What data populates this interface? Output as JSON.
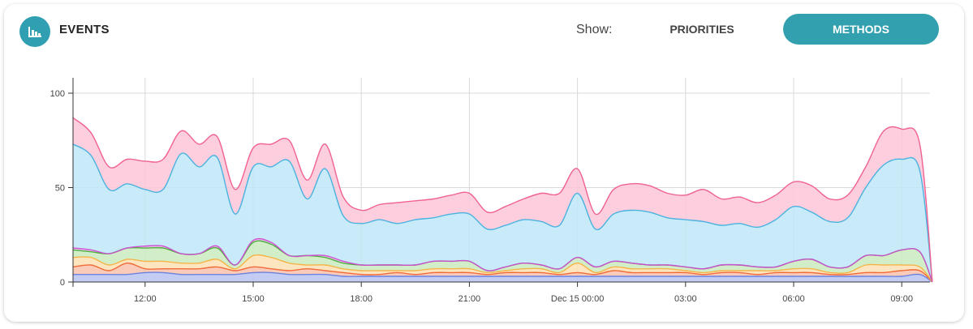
{
  "header": {
    "title": "EVENTS",
    "show_label": "Show:",
    "buttons": [
      {
        "label": "PRIORITIES",
        "active": false
      },
      {
        "label": "METHODS",
        "active": true
      }
    ],
    "icon": "bar-chart-icon",
    "accent_color": "#33a0b0"
  },
  "chart_data": {
    "type": "area",
    "stacked": true,
    "smooth": true,
    "grid": true,
    "ylim": [
      0,
      110
    ],
    "y_ticks": [
      0,
      50,
      100
    ],
    "x_ticks": [
      {
        "hour": 12,
        "label": "12:00"
      },
      {
        "hour": 15,
        "label": "15:00"
      },
      {
        "hour": 18,
        "label": "18:00"
      },
      {
        "hour": 21,
        "label": "21:00"
      },
      {
        "hour": 24,
        "label": "Dec 15 00:00"
      },
      {
        "hour": 27,
        "label": "03:00"
      },
      {
        "hour": 30,
        "label": "06:00"
      },
      {
        "hour": 33,
        "label": "09:00"
      }
    ],
    "x_hours": [
      10.0,
      10.5,
      11.0,
      11.5,
      12.0,
      12.5,
      13.0,
      13.5,
      14.0,
      14.5,
      15.0,
      15.5,
      16.0,
      16.5,
      17.0,
      17.5,
      18.0,
      18.5,
      19.0,
      19.5,
      20.0,
      20.5,
      21.0,
      21.5,
      22.0,
      22.5,
      23.0,
      23.5,
      24.0,
      24.5,
      25.0,
      25.5,
      26.0,
      26.5,
      27.0,
      27.5,
      28.0,
      28.5,
      29.0,
      29.5,
      30.0,
      30.5,
      31.0,
      31.5,
      32.0,
      32.5,
      33.0,
      33.5,
      33.85
    ],
    "series": [
      {
        "color": "#6b82e0",
        "fill": "#b8c4f2",
        "values": [
          4,
          4,
          4,
          4,
          5,
          5,
          4,
          4,
          4,
          4,
          5,
          5,
          4,
          4,
          4,
          3,
          3,
          3,
          3,
          3,
          3,
          3,
          3,
          3,
          3,
          3,
          3,
          3,
          3,
          3,
          3,
          3,
          3,
          3,
          3,
          3,
          3,
          3,
          3,
          3,
          3,
          3,
          3,
          3,
          3,
          3,
          3,
          4,
          0
        ]
      },
      {
        "color": "#f06a3a",
        "fill": "#f9c2ac",
        "values": [
          4,
          5,
          2,
          6,
          2,
          2,
          3,
          3,
          4,
          2,
          3,
          2,
          2,
          3,
          2,
          2,
          1,
          1,
          2,
          1,
          2,
          2,
          2,
          1,
          2,
          2,
          2,
          1,
          2,
          1,
          3,
          2,
          2,
          2,
          2,
          1,
          2,
          2,
          1,
          2,
          2,
          2,
          1,
          1,
          2,
          2,
          3,
          2,
          0
        ]
      },
      {
        "color": "#f5b44a",
        "fill": "#fde2b4",
        "values": [
          5,
          4,
          3,
          2,
          4,
          4,
          3,
          3,
          4,
          1,
          6,
          6,
          4,
          2,
          3,
          2,
          2,
          2,
          1,
          2,
          2,
          2,
          2,
          1,
          1,
          2,
          2,
          1,
          5,
          1,
          2,
          2,
          2,
          2,
          1,
          1,
          1,
          1,
          2,
          1,
          2,
          2,
          1,
          1,
          4,
          4,
          3,
          2,
          0
        ]
      },
      {
        "color": "#4caf3e",
        "fill": "#c9ebc0",
        "values": [
          4,
          3,
          6,
          6,
          7,
          7,
          5,
          5,
          6,
          2,
          7,
          7,
          4,
          5,
          4,
          3,
          3,
          3,
          3,
          3,
          4,
          4,
          4,
          1,
          2,
          3,
          2,
          2,
          3,
          3,
          3,
          3,
          2,
          2,
          2,
          2,
          3,
          3,
          2,
          2,
          4,
          5,
          3,
          3,
          5,
          5,
          8,
          8,
          0
        ]
      },
      {
        "color": "#cc4fd0",
        "fill": "#ecc0ee",
        "values": [
          1,
          1,
          0,
          0,
          1,
          1,
          0,
          0,
          1,
          0,
          1,
          1,
          0,
          0,
          1,
          1,
          0,
          0,
          0,
          0,
          0,
          0,
          0,
          0,
          0,
          0,
          0,
          0,
          0,
          0,
          0,
          0,
          0,
          0,
          0,
          0,
          0,
          0,
          0,
          0,
          0,
          0,
          0,
          0,
          0,
          0,
          0,
          0,
          0
        ]
      },
      {
        "color": "#4ab3e0",
        "fill": "#bfe6f7",
        "values": [
          55,
          50,
          34,
          34,
          30,
          30,
          53,
          46,
          47,
          27,
          39,
          40,
          50,
          30,
          46,
          24,
          22,
          24,
          22,
          24,
          23,
          25,
          25,
          22,
          22,
          23,
          23,
          23,
          34,
          20,
          25,
          28,
          28,
          25,
          25,
          25,
          21,
          22,
          21,
          25,
          29,
          25,
          24,
          26,
          36,
          48,
          48,
          43,
          0
        ]
      },
      {
        "color": "#f06292",
        "fill": "#fbc5d8",
        "values": [
          14,
          12,
          12,
          13,
          15,
          16,
          12,
          12,
          11,
          13,
          10,
          12,
          11,
          10,
          13,
          10,
          7,
          8,
          11,
          10,
          10,
          10,
          11,
          9,
          10,
          11,
          15,
          17,
          13,
          8,
          13,
          14,
          14,
          13,
          13,
          17,
          14,
          14,
          13,
          13,
          13,
          14,
          12,
          12,
          11,
          18,
          16,
          14,
          0
        ]
      }
    ]
  }
}
